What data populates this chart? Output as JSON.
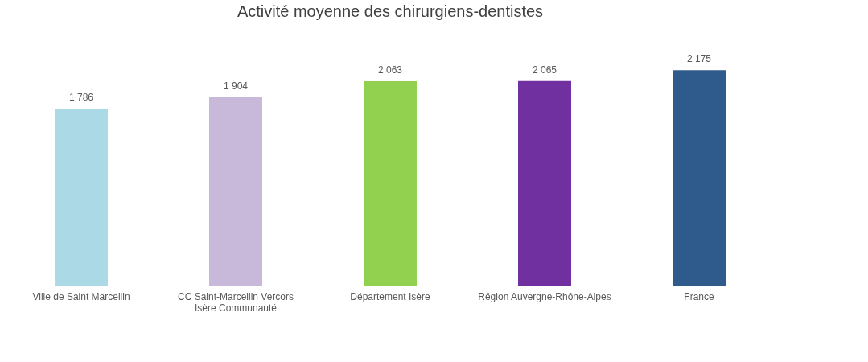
{
  "chart_data": {
    "type": "bar",
    "title": "Activité moyenne des chirurgiens-dentistes",
    "categories": [
      "Ville de Saint Marcellin",
      "CC Saint-Marcellin Vercors Isère Communauté",
      "Département Isère",
      "Région Auvergne-Rhône-Alpes",
      "France"
    ],
    "values": [
      1786,
      1904,
      2063,
      2065,
      2175
    ],
    "colors": [
      "#abd9e6",
      "#c8b9da",
      "#92d050",
      "#7030a0",
      "#2f5a8c"
    ],
    "value_labels": [
      "1 786",
      "1 904",
      "2 063",
      "2 065",
      "2 175"
    ]
  }
}
